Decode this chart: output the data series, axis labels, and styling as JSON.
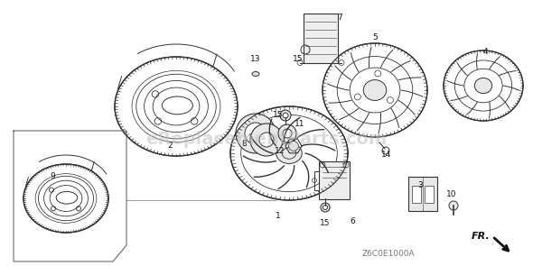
{
  "background_color": "#ffffff",
  "watermark_text": "eReplacementParts.com",
  "watermark_color": "#bbbbbb",
  "watermark_fontsize": 14,
  "watermark_alpha": 0.5,
  "diagram_code": "Z6C0E1000A",
  "diagram_code_color": "#777777",
  "diagram_code_fontsize": 6.5,
  "fr_label": "FR.",
  "fr_color": "#111111",
  "fr_fontsize": 8,
  "line_color": "#333333",
  "label_fontsize": 6.5,
  "label_color": "#111111"
}
